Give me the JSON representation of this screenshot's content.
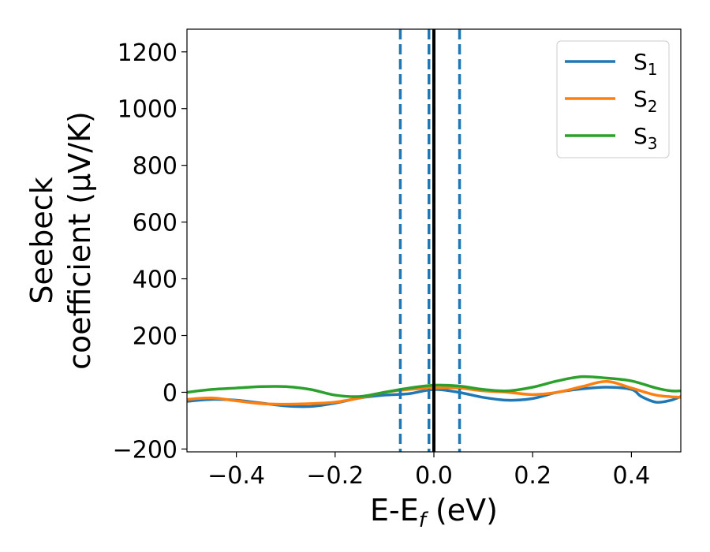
{
  "chart_data": {
    "type": "line",
    "xlabel": "E-E",
    "xlabel_sub": "f",
    "xlabel_unit": " (eV)",
    "ylabel_line1": "Seebeck",
    "ylabel_line2": "coefficient  (μV/K)",
    "xlim": [
      -0.5,
      0.5
    ],
    "ylim": [
      -210,
      1280
    ],
    "xticks": [
      -0.4,
      -0.2,
      0.0,
      0.2,
      0.4
    ],
    "xtick_labels": [
      "−0.4",
      "−0.2",
      "0.0",
      "0.2",
      "0.4"
    ],
    "yticks": [
      -200,
      0,
      200,
      400,
      600,
      800,
      1000,
      1200
    ],
    "ytick_labels": [
      "−200",
      "0",
      "200",
      "400",
      "600",
      "800",
      "1000",
      "1200"
    ],
    "grid": false,
    "legend_position": "top-right",
    "vlines": [
      {
        "x": -0.068,
        "style": "dashed",
        "color": "#1f77b4"
      },
      {
        "x": -0.01,
        "style": "dashed",
        "color": "#1f77b4"
      },
      {
        "x": 0.052,
        "style": "dashed",
        "color": "#1f77b4"
      },
      {
        "x": 0.0,
        "style": "solid",
        "color": "#000000"
      }
    ],
    "series": [
      {
        "name": "S",
        "sub": "1",
        "color": "#1f77b4",
        "x": [
          -0.5,
          -0.45,
          -0.4,
          -0.35,
          -0.3,
          -0.25,
          -0.2,
          -0.15,
          -0.1,
          -0.05,
          0.0,
          0.05,
          0.1,
          0.15,
          0.2,
          0.25,
          0.3,
          0.35,
          0.4,
          0.42,
          0.45,
          0.48,
          0.5
        ],
        "y": [
          -32,
          -25,
          -28,
          -38,
          -48,
          -50,
          -38,
          -20,
          -10,
          -5,
          10,
          0,
          -18,
          -28,
          -22,
          0,
          12,
          18,
          10,
          -15,
          -35,
          -28,
          -15
        ]
      },
      {
        "name": "S",
        "sub": "2",
        "color": "#ff7f0e",
        "x": [
          -0.5,
          -0.45,
          -0.4,
          -0.35,
          -0.3,
          -0.25,
          -0.2,
          -0.15,
          -0.1,
          -0.05,
          0.0,
          0.05,
          0.1,
          0.15,
          0.2,
          0.25,
          0.3,
          0.35,
          0.4,
          0.45,
          0.5
        ],
        "y": [
          -25,
          -20,
          -30,
          -40,
          -42,
          -40,
          -35,
          -20,
          0,
          10,
          15,
          15,
          5,
          0,
          -8,
          0,
          20,
          38,
          15,
          -10,
          -18
        ]
      },
      {
        "name": "S",
        "sub": "3",
        "color": "#2ca02c",
        "x": [
          -0.5,
          -0.45,
          -0.4,
          -0.35,
          -0.3,
          -0.25,
          -0.2,
          -0.15,
          -0.1,
          -0.05,
          0.0,
          0.05,
          0.1,
          0.15,
          0.2,
          0.25,
          0.3,
          0.35,
          0.4,
          0.45,
          0.48,
          0.5
        ],
        "y": [
          0,
          10,
          15,
          20,
          20,
          10,
          -10,
          -15,
          0,
          15,
          25,
          22,
          10,
          5,
          18,
          40,
          55,
          50,
          40,
          15,
          5,
          5
        ]
      }
    ]
  }
}
